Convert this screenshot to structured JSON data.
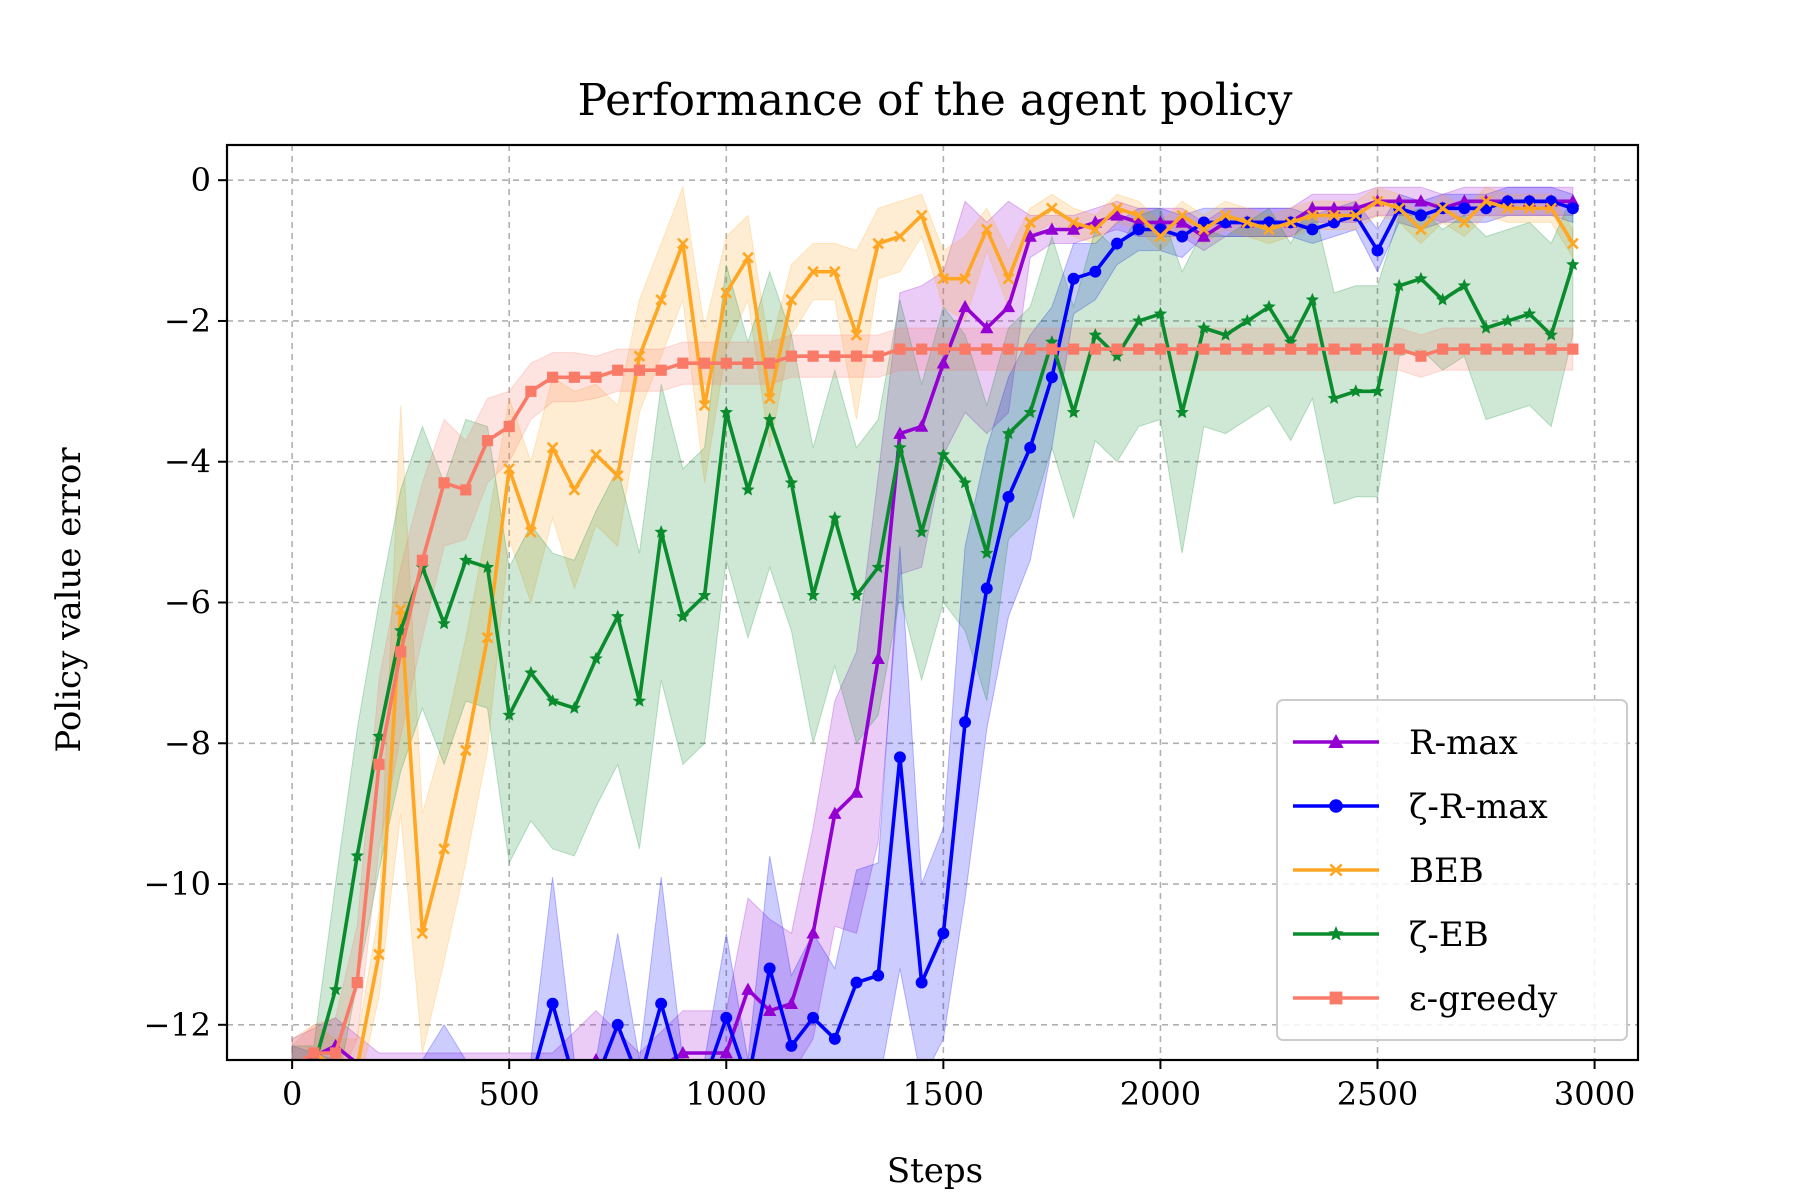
{
  "chart_data": {
    "type": "line",
    "title": "Performance of the agent policy",
    "xlabel": "Steps",
    "ylabel": "Policy value error",
    "xlim": [
      -150,
      3100
    ],
    "ylim": [
      -12.5,
      0.5
    ],
    "xticks": [
      0,
      500,
      1000,
      1500,
      2000,
      2500,
      3000
    ],
    "xtick_labels": [
      "0",
      "500",
      "1000",
      "1500",
      "2000",
      "2500",
      "3000"
    ],
    "yticks": [
      0,
      -2,
      -4,
      -6,
      -8,
      -10,
      -12
    ],
    "ytick_labels": [
      "0",
      "−2",
      "−4",
      "−6",
      "−8",
      "−10",
      "−12"
    ],
    "grid": true,
    "legend_position": "lower right",
    "series": [
      {
        "name": "R-max",
        "color": "#9400d3",
        "marker": "triangle",
        "x": [
          0,
          100,
          200,
          300,
          400,
          500,
          600,
          700,
          800,
          900,
          1000,
          1050,
          1100,
          1150,
          1200,
          1250,
          1300,
          1350,
          1400,
          1450,
          1500,
          1550,
          1600,
          1650,
          1700,
          1750,
          1800,
          1850,
          1900,
          1950,
          2000,
          2050,
          2100,
          2150,
          2200,
          2250,
          2300,
          2350,
          2400,
          2450,
          2500,
          2550,
          2600,
          2650,
          2700,
          2750,
          2800,
          2850,
          2900,
          2950
        ],
        "y": [
          -12.6,
          -12.3,
          -12.8,
          -12.8,
          -12.8,
          -12.8,
          -12.8,
          -12.5,
          -12.8,
          -12.4,
          -12.4,
          -11.5,
          -11.8,
          -11.7,
          -10.7,
          -9.0,
          -8.7,
          -6.8,
          -3.6,
          -3.5,
          -2.6,
          -1.8,
          -2.1,
          -1.8,
          -0.8,
          -0.7,
          -0.7,
          -0.6,
          -0.5,
          -0.6,
          -0.6,
          -0.6,
          -0.8,
          -0.6,
          -0.6,
          -0.6,
          -0.6,
          -0.4,
          -0.4,
          -0.4,
          -0.3,
          -0.3,
          -0.3,
          -0.4,
          -0.3,
          -0.3,
          -0.3,
          -0.3,
          -0.3,
          -0.3
        ],
        "band": [
          0.4,
          0.4,
          0.4,
          0.4,
          0.4,
          0.4,
          0.4,
          0.7,
          0.4,
          0.6,
          0.6,
          1.3,
          1.3,
          1.0,
          1.5,
          1.6,
          2.0,
          2.6,
          2.0,
          2.0,
          1.3,
          1.5,
          1.5,
          1.5,
          0.3,
          0.2,
          0.2,
          0.2,
          0.2,
          0.2,
          0.2,
          0.2,
          0.2,
          0.2,
          0.2,
          0.2,
          0.2,
          0.2,
          0.2,
          0.2,
          0.2,
          0.2,
          0.2,
          0.2,
          0.2,
          0.2,
          0.2,
          0.2,
          0.2,
          0.2
        ]
      },
      {
        "name": "ζ-R-max",
        "color": "#0000ff",
        "marker": "circle",
        "x": [
          0,
          100,
          200,
          300,
          350,
          400,
          450,
          500,
          550,
          600,
          650,
          700,
          750,
          800,
          850,
          900,
          950,
          1000,
          1050,
          1100,
          1150,
          1200,
          1250,
          1300,
          1350,
          1400,
          1450,
          1500,
          1550,
          1600,
          1650,
          1700,
          1750,
          1800,
          1850,
          1900,
          1950,
          2000,
          2050,
          2100,
          2150,
          2200,
          2250,
          2300,
          2350,
          2400,
          2450,
          2500,
          2550,
          2600,
          2650,
          2700,
          2750,
          2800,
          2850,
          2900,
          2950
        ],
        "y": [
          -12.6,
          -12.8,
          -12.8,
          -12.8,
          -12.6,
          -12.8,
          -12.8,
          -12.8,
          -12.8,
          -11.7,
          -12.8,
          -12.8,
          -12.0,
          -12.8,
          -11.7,
          -12.8,
          -12.8,
          -11.9,
          -12.8,
          -11.2,
          -12.3,
          -11.9,
          -12.2,
          -11.4,
          -11.3,
          -8.2,
          -11.4,
          -10.7,
          -7.7,
          -5.8,
          -4.5,
          -3.8,
          -2.8,
          -1.4,
          -1.3,
          -0.9,
          -0.7,
          -0.7,
          -0.8,
          -0.6,
          -0.6,
          -0.6,
          -0.6,
          -0.6,
          -0.7,
          -0.6,
          -0.5,
          -1.0,
          -0.4,
          -0.5,
          -0.4,
          -0.4,
          -0.4,
          -0.3,
          -0.3,
          -0.3,
          -0.4
        ],
        "band": [
          0.3,
          0.3,
          0.3,
          0.3,
          0.6,
          0.3,
          0.3,
          0.3,
          0.3,
          1.8,
          0.3,
          0.3,
          1.3,
          0.3,
          1.8,
          0.3,
          0.3,
          1.2,
          0.3,
          1.6,
          1.0,
          1.2,
          1.0,
          1.6,
          1.6,
          3.0,
          1.4,
          1.5,
          2.5,
          2.0,
          1.7,
          1.6,
          1.0,
          0.5,
          0.4,
          0.3,
          0.3,
          0.3,
          0.3,
          0.2,
          0.2,
          0.2,
          0.2,
          0.2,
          0.2,
          0.2,
          0.2,
          0.3,
          0.2,
          0.2,
          0.2,
          0.2,
          0.2,
          0.2,
          0.2,
          0.2,
          0.2
        ]
      },
      {
        "name": "BEB",
        "color": "#ffa623",
        "marker": "x",
        "x": [
          0,
          50,
          100,
          150,
          200,
          250,
          300,
          350,
          400,
          450,
          500,
          550,
          600,
          650,
          700,
          750,
          800,
          850,
          900,
          950,
          1000,
          1050,
          1100,
          1150,
          1200,
          1250,
          1300,
          1350,
          1400,
          1450,
          1500,
          1550,
          1600,
          1650,
          1700,
          1750,
          1800,
          1850,
          1900,
          1950,
          2000,
          2050,
          2100,
          2150,
          2200,
          2250,
          2300,
          2350,
          2400,
          2450,
          2500,
          2550,
          2600,
          2650,
          2700,
          2750,
          2800,
          2850,
          2900,
          2950
        ],
        "y": [
          -12.6,
          -12.4,
          -12.6,
          -12.6,
          -11.0,
          -6.1,
          -10.7,
          -9.5,
          -8.1,
          -6.5,
          -4.1,
          -5.0,
          -3.8,
          -4.4,
          -3.9,
          -4.2,
          -2.5,
          -1.7,
          -0.9,
          -3.2,
          -1.6,
          -1.1,
          -3.1,
          -1.7,
          -1.3,
          -1.3,
          -2.2,
          -0.9,
          -0.8,
          -0.5,
          -1.4,
          -1.4,
          -0.7,
          -1.4,
          -0.6,
          -0.4,
          -0.6,
          -0.7,
          -0.4,
          -0.5,
          -0.8,
          -0.5,
          -0.7,
          -0.5,
          -0.6,
          -0.7,
          -0.6,
          -0.5,
          -0.5,
          -0.5,
          -0.3,
          -0.4,
          -0.7,
          -0.4,
          -0.6,
          -0.3,
          -0.4,
          -0.4,
          -0.4,
          -0.9
        ],
        "band": [
          0.4,
          0.4,
          0.4,
          0.4,
          0.6,
          2.9,
          1.7,
          1.6,
          1.6,
          1.6,
          1.0,
          1.0,
          1.0,
          1.4,
          1.0,
          1.0,
          0.8,
          0.8,
          0.8,
          1.1,
          0.8,
          0.6,
          0.7,
          0.5,
          0.4,
          0.4,
          1.2,
          0.5,
          0.5,
          0.3,
          0.4,
          0.6,
          0.3,
          0.4,
          0.2,
          0.2,
          0.2,
          0.2,
          0.2,
          0.2,
          0.2,
          0.2,
          0.2,
          0.2,
          0.2,
          0.2,
          0.2,
          0.2,
          0.2,
          0.2,
          0.2,
          0.2,
          0.2,
          0.2,
          0.2,
          0.2,
          0.2,
          0.2,
          0.2,
          0.2
        ]
      },
      {
        "name": "ζ-EB",
        "color": "#0a8c2e",
        "marker": "star",
        "x": [
          0,
          50,
          100,
          150,
          200,
          250,
          300,
          350,
          400,
          450,
          500,
          550,
          600,
          650,
          700,
          750,
          800,
          850,
          900,
          950,
          1000,
          1050,
          1100,
          1150,
          1200,
          1250,
          1300,
          1350,
          1400,
          1450,
          1500,
          1550,
          1600,
          1650,
          1700,
          1750,
          1800,
          1850,
          1900,
          1950,
          2000,
          2050,
          2100,
          2150,
          2200,
          2250,
          2300,
          2350,
          2400,
          2450,
          2500,
          2550,
          2600,
          2650,
          2700,
          2750,
          2800,
          2850,
          2900,
          2950
        ],
        "y": [
          -12.6,
          -12.6,
          -11.5,
          -9.6,
          -7.9,
          -6.4,
          -5.5,
          -6.3,
          -5.4,
          -5.5,
          -7.6,
          -7.0,
          -7.4,
          -7.5,
          -6.8,
          -6.2,
          -7.4,
          -5.0,
          -6.2,
          -5.9,
          -3.3,
          -4.4,
          -3.4,
          -4.3,
          -5.9,
          -4.8,
          -5.9,
          -5.5,
          -3.8,
          -5.0,
          -3.9,
          -4.3,
          -5.3,
          -3.6,
          -3.3,
          -2.3,
          -3.3,
          -2.2,
          -2.5,
          -2.0,
          -1.9,
          -3.3,
          -2.1,
          -2.2,
          -2.0,
          -1.8,
          -2.3,
          -1.7,
          -3.1,
          -3.0,
          -3.0,
          -1.5,
          -1.4,
          -1.7,
          -1.5,
          -2.1,
          -2.0,
          -1.9,
          -2.2,
          -1.2
        ],
        "band": [
          0.3,
          0.3,
          1.5,
          1.8,
          1.9,
          2.0,
          2.0,
          2.0,
          2.0,
          2.0,
          2.1,
          2.1,
          2.1,
          2.1,
          2.1,
          2.1,
          2.1,
          2.1,
          2.1,
          2.1,
          2.1,
          2.1,
          2.1,
          2.1,
          2.1,
          2.1,
          2.1,
          2.1,
          2.1,
          2.1,
          2.1,
          2.1,
          2.1,
          1.5,
          1.5,
          1.5,
          1.5,
          1.5,
          1.5,
          1.5,
          1.5,
          2.0,
          1.4,
          1.4,
          1.4,
          1.4,
          1.4,
          1.4,
          1.5,
          1.5,
          1.5,
          1.0,
          1.0,
          1.0,
          1.0,
          1.3,
          1.3,
          1.3,
          1.3,
          1.0
        ]
      },
      {
        "name": "ε-greedy",
        "color": "#fa7a68",
        "marker": "square",
        "x": [
          0,
          50,
          100,
          150,
          200,
          250,
          300,
          350,
          400,
          450,
          500,
          550,
          600,
          650,
          700,
          750,
          800,
          850,
          900,
          950,
          1000,
          1050,
          1100,
          1150,
          1200,
          1250,
          1300,
          1350,
          1400,
          1450,
          1500,
          1550,
          1600,
          1650,
          1700,
          1750,
          1800,
          1850,
          1900,
          1950,
          2000,
          2050,
          2100,
          2150,
          2200,
          2250,
          2300,
          2350,
          2400,
          2450,
          2500,
          2550,
          2600,
          2650,
          2700,
          2750,
          2800,
          2850,
          2900,
          2950
        ],
        "y": [
          -12.6,
          -12.4,
          -12.4,
          -11.4,
          -8.3,
          -6.7,
          -5.4,
          -4.3,
          -4.4,
          -3.7,
          -3.5,
          -3.0,
          -2.8,
          -2.8,
          -2.8,
          -2.7,
          -2.7,
          -2.7,
          -2.6,
          -2.6,
          -2.6,
          -2.6,
          -2.6,
          -2.5,
          -2.5,
          -2.5,
          -2.5,
          -2.5,
          -2.4,
          -2.4,
          -2.4,
          -2.4,
          -2.4,
          -2.4,
          -2.4,
          -2.4,
          -2.4,
          -2.4,
          -2.4,
          -2.4,
          -2.4,
          -2.4,
          -2.4,
          -2.4,
          -2.4,
          -2.4,
          -2.4,
          -2.4,
          -2.4,
          -2.4,
          -2.4,
          -2.4,
          -2.5,
          -2.4,
          -2.4,
          -2.4,
          -2.4,
          -2.4,
          -2.4,
          -2.4
        ],
        "band": [
          0.3,
          0.4,
          0.5,
          0.8,
          1.2,
          1.2,
          1.1,
          0.9,
          0.7,
          0.6,
          0.5,
          0.4,
          0.35,
          0.35,
          0.3,
          0.3,
          0.3,
          0.3,
          0.3,
          0.3,
          0.3,
          0.3,
          0.3,
          0.3,
          0.3,
          0.3,
          0.3,
          0.3,
          0.3,
          0.3,
          0.3,
          0.3,
          0.3,
          0.3,
          0.3,
          0.3,
          0.3,
          0.3,
          0.3,
          0.3,
          0.3,
          0.3,
          0.3,
          0.3,
          0.3,
          0.3,
          0.3,
          0.3,
          0.3,
          0.3,
          0.3,
          0.3,
          0.3,
          0.3,
          0.3,
          0.3,
          0.3,
          0.3,
          0.3,
          0.3
        ]
      }
    ]
  }
}
